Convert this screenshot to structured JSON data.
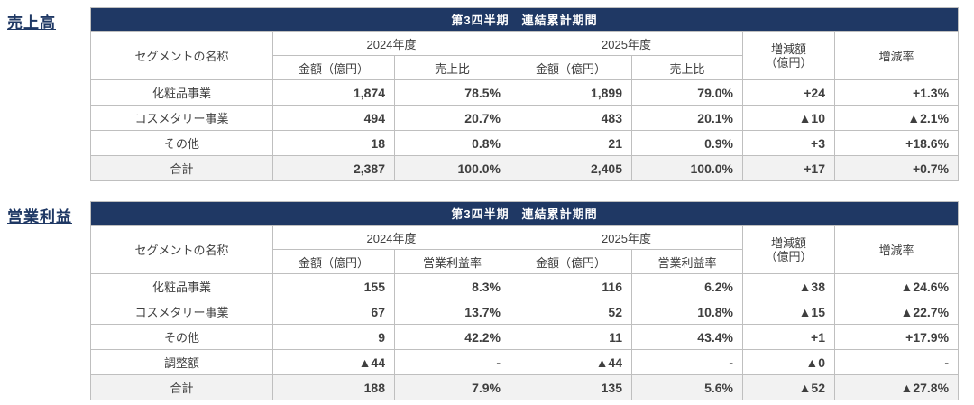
{
  "colors": {
    "title_band_bg": "#1f3864",
    "title_band_text": "#ffffff",
    "border": "#bfbfbf",
    "total_row_bg": "#f2f2f2",
    "section_label_text": "#1f3864",
    "body_text": "#404040"
  },
  "tables": [
    {
      "section_label": "売上高",
      "title": "第3四半期　連結累計期間",
      "header": {
        "segment": "セグメントの名称",
        "year_groups": [
          "2024年度",
          "2025年度"
        ],
        "sub_cols": [
          "金額（億円）",
          "売上比",
          "金額（億円）",
          "売上比"
        ],
        "diff_amount_line1": "増減額",
        "diff_amount_line2": "（億円）",
        "diff_rate": "増減率"
      },
      "rows": [
        {
          "name": "化粧品事業",
          "values": [
            "1,874",
            "78.5%",
            "1,899",
            "79.0%",
            "+24",
            "+1.3%"
          ],
          "total": false
        },
        {
          "name": "コスメタリー事業",
          "values": [
            "494",
            "20.7%",
            "483",
            "20.1%",
            "▲10",
            "▲2.1%"
          ],
          "total": false
        },
        {
          "name": "その他",
          "values": [
            "18",
            "0.8%",
            "21",
            "0.9%",
            "+3",
            "+18.6%"
          ],
          "total": false
        },
        {
          "name": "合計",
          "values": [
            "2,387",
            "100.0%",
            "2,405",
            "100.0%",
            "+17",
            "+0.7%"
          ],
          "total": true
        }
      ]
    },
    {
      "section_label": "営業利益",
      "title": "第3四半期　連結累計期間",
      "header": {
        "segment": "セグメントの名称",
        "year_groups": [
          "2024年度",
          "2025年度"
        ],
        "sub_cols": [
          "金額（億円）",
          "営業利益率",
          "金額（億円）",
          "営業利益率"
        ],
        "diff_amount_line1": "増減額",
        "diff_amount_line2": "（億円）",
        "diff_rate": "増減率"
      },
      "rows": [
        {
          "name": "化粧品事業",
          "values": [
            "155",
            "8.3%",
            "116",
            "6.2%",
            "▲38",
            "▲24.6%"
          ],
          "total": false
        },
        {
          "name": "コスメタリー事業",
          "values": [
            "67",
            "13.7%",
            "52",
            "10.8%",
            "▲15",
            "▲22.7%"
          ],
          "total": false
        },
        {
          "name": "その他",
          "values": [
            "9",
            "42.2%",
            "11",
            "43.4%",
            "+1",
            "+17.9%"
          ],
          "total": false
        },
        {
          "name": "調整額",
          "values": [
            "▲44",
            "-",
            "▲44",
            "-",
            "▲0",
            "-"
          ],
          "total": false
        },
        {
          "name": "合計",
          "values": [
            "188",
            "7.9%",
            "135",
            "5.6%",
            "▲52",
            "▲27.8%"
          ],
          "total": true
        }
      ]
    }
  ]
}
